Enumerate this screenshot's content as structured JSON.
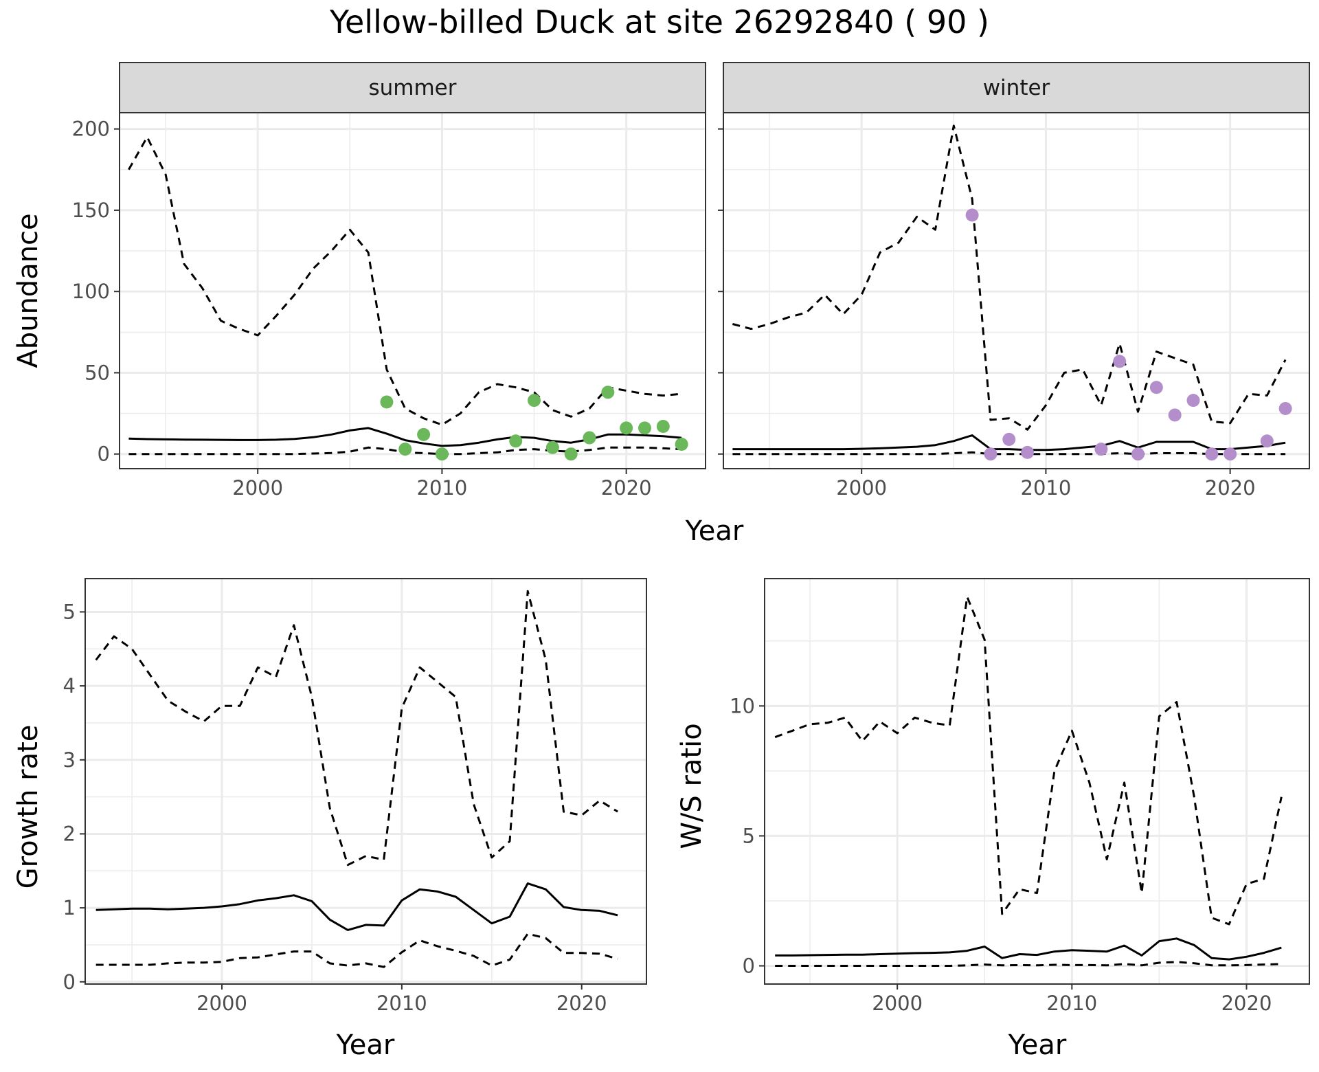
{
  "title": "Yellow-billed Duck at site 26292840 ( 90 )",
  "chart_data": [
    {
      "type": "line",
      "panel": "summer",
      "facet_label": "summer",
      "xlabel": "Year",
      "ylabel": "Abundance",
      "xlim": [
        1992.5,
        2024.3
      ],
      "ylim": [
        -9,
        210
      ],
      "xticks": [
        2000,
        2010,
        2020
      ],
      "yticks": [
        0,
        50,
        100,
        150,
        200
      ],
      "grid": true,
      "x": [
        1993,
        1994,
        1995,
        1996,
        1997,
        1998,
        1999,
        2000,
        2001,
        2002,
        2003,
        2004,
        2005,
        2006,
        2007,
        2008,
        2009,
        2010,
        2011,
        2012,
        2013,
        2014,
        2015,
        2016,
        2017,
        2018,
        2019,
        2020,
        2021,
        2022,
        2023
      ],
      "series": [
        {
          "style": "solid",
          "values": [
            9.5,
            9.2,
            9,
            8.9,
            8.8,
            8.7,
            8.6,
            8.6,
            8.8,
            9.3,
            10.3,
            12,
            14.5,
            16,
            12.5,
            8.5,
            6.5,
            5,
            5.5,
            7,
            9,
            10.5,
            10,
            8,
            7,
            9,
            12,
            12,
            11.5,
            11,
            10
          ]
        },
        {
          "style": "dashed",
          "values": [
            175,
            195,
            172,
            117,
            102,
            82,
            77,
            73,
            85,
            98,
            114,
            125,
            138,
            124,
            52,
            28,
            22,
            18,
            25,
            38,
            43,
            41,
            38,
            27,
            23,
            28,
            41,
            39,
            37,
            36,
            37
          ]
        },
        {
          "style": "dashed",
          "values": [
            0,
            0,
            0,
            0,
            0,
            0,
            0,
            0,
            0,
            0,
            0.3,
            0.6,
            1.5,
            4,
            3,
            1,
            0.5,
            0,
            0,
            0.5,
            1,
            2.5,
            3,
            2,
            1.5,
            2.5,
            4,
            4,
            4,
            3.5,
            3
          ]
        }
      ],
      "points": {
        "color": "#6ab85a",
        "x": [
          2007,
          2008,
          2009,
          2010,
          2014,
          2015,
          2016,
          2017,
          2018,
          2019,
          2020,
          2021,
          2022,
          2023
        ],
        "y": [
          32,
          3,
          12,
          0,
          8,
          33,
          4,
          0,
          10,
          38,
          16,
          16,
          17,
          6
        ]
      }
    },
    {
      "type": "line",
      "panel": "winter",
      "facet_label": "winter",
      "xlabel": "Year",
      "ylabel": "",
      "xlim": [
        1992.5,
        2024.3
      ],
      "ylim": [
        -9,
        210
      ],
      "xticks": [
        2000,
        2010,
        2020
      ],
      "yticks": [
        0,
        50,
        100,
        150,
        200
      ],
      "grid": true,
      "x": [
        1993,
        1994,
        1995,
        1996,
        1997,
        1998,
        1999,
        2000,
        2001,
        2002,
        2003,
        2004,
        2005,
        2006,
        2007,
        2008,
        2009,
        2010,
        2011,
        2012,
        2013,
        2014,
        2015,
        2016,
        2017,
        2018,
        2019,
        2020,
        2021,
        2022,
        2023
      ],
      "series": [
        {
          "style": "solid",
          "values": [
            3,
            3,
            3,
            3,
            3,
            3,
            3,
            3.2,
            3.5,
            4,
            4.5,
            5.5,
            8,
            11.5,
            3,
            3,
            2.5,
            2.5,
            3,
            4,
            5,
            8,
            4,
            7.5,
            7.5,
            7.5,
            3,
            3,
            4,
            5,
            7
          ]
        },
        {
          "style": "dashed",
          "values": [
            80,
            77,
            80,
            84,
            87,
            98,
            86,
            98,
            124,
            130,
            146,
            138,
            202,
            157,
            21,
            22,
            15,
            30,
            50,
            52,
            30,
            68,
            26,
            63,
            59,
            55,
            20,
            19,
            37,
            36,
            58
          ]
        },
        {
          "style": "dashed",
          "values": [
            0,
            0,
            0,
            0,
            0,
            0,
            0,
            0,
            0,
            0,
            0,
            0,
            0.5,
            1,
            0,
            0,
            0,
            0,
            0,
            0,
            0,
            0.5,
            0,
            0.5,
            0.5,
            0.5,
            0,
            0,
            0,
            0,
            0
          ]
        }
      ],
      "points": {
        "color": "#b38ecb",
        "x": [
          2006,
          2007,
          2008,
          2009,
          2013,
          2014,
          2015,
          2016,
          2017,
          2018,
          2019,
          2020,
          2022,
          2023
        ],
        "y": [
          147,
          0,
          9,
          1,
          3,
          57,
          0,
          41,
          24,
          33,
          0,
          0,
          8,
          28
        ]
      }
    },
    {
      "type": "line",
      "panel": "growth",
      "xlabel": "Year",
      "ylabel": "Growth rate",
      "xlim": [
        1992.4,
        2023.6
      ],
      "ylim": [
        -0.03,
        5.45
      ],
      "xticks": [
        2000,
        2010,
        2020
      ],
      "yticks": [
        0,
        1,
        2,
        3,
        4,
        5
      ],
      "grid": true,
      "x": [
        1993,
        1994,
        1995,
        1996,
        1997,
        1998,
        1999,
        2000,
        2001,
        2002,
        2003,
        2004,
        2005,
        2006,
        2007,
        2008,
        2009,
        2010,
        2011,
        2012,
        2013,
        2014,
        2015,
        2016,
        2017,
        2018,
        2019,
        2020,
        2021,
        2022
      ],
      "series": [
        {
          "style": "solid",
          "values": [
            0.97,
            0.98,
            0.99,
            0.99,
            0.98,
            0.99,
            1,
            1.02,
            1.05,
            1.1,
            1.13,
            1.17,
            1.09,
            0.84,
            0.7,
            0.77,
            0.76,
            1.1,
            1.25,
            1.22,
            1.15,
            0.97,
            0.79,
            0.88,
            1.33,
            1.25,
            1.01,
            0.97,
            0.96,
            0.9
          ]
        },
        {
          "style": "dashed",
          "values": [
            4.35,
            4.67,
            4.5,
            4.15,
            3.8,
            3.65,
            3.52,
            3.73,
            3.73,
            4.25,
            4.12,
            4.82,
            3.85,
            2.35,
            1.58,
            1.7,
            1.65,
            3.7,
            4.25,
            4.05,
            3.85,
            2.4,
            1.68,
            1.9,
            5.28,
            4.35,
            2.3,
            2.25,
            2.45,
            2.3
          ]
        },
        {
          "style": "dashed",
          "values": [
            0.23,
            0.23,
            0.23,
            0.23,
            0.25,
            0.26,
            0.26,
            0.27,
            0.32,
            0.33,
            0.37,
            0.41,
            0.41,
            0.25,
            0.22,
            0.25,
            0.2,
            0.4,
            0.56,
            0.48,
            0.42,
            0.35,
            0.22,
            0.3,
            0.65,
            0.59,
            0.39,
            0.39,
            0.38,
            0.31
          ]
        }
      ]
    },
    {
      "type": "line",
      "panel": "ws_ratio",
      "xlabel": "Year",
      "ylabel": "W/S ratio",
      "xlim": [
        1992.4,
        2023.6
      ],
      "ylim": [
        -0.7,
        14.9
      ],
      "xticks": [
        2000,
        2010,
        2020
      ],
      "yticks": [
        0,
        5,
        10
      ],
      "grid": true,
      "x": [
        1993,
        1994,
        1995,
        1996,
        1997,
        1998,
        1999,
        2000,
        2001,
        2002,
        2003,
        2004,
        2005,
        2006,
        2007,
        2008,
        2009,
        2010,
        2011,
        2012,
        2013,
        2014,
        2015,
        2016,
        2017,
        2018,
        2019,
        2020,
        2021,
        2022
      ],
      "series": [
        {
          "style": "solid",
          "values": [
            0.4,
            0.4,
            0.41,
            0.42,
            0.43,
            0.43,
            0.45,
            0.47,
            0.49,
            0.5,
            0.52,
            0.58,
            0.74,
            0.3,
            0.45,
            0.42,
            0.55,
            0.6,
            0.58,
            0.55,
            0.78,
            0.4,
            0.95,
            1.05,
            0.8,
            0.3,
            0.25,
            0.35,
            0.5,
            0.7
          ]
        },
        {
          "style": "dashed",
          "values": [
            8.8,
            9.05,
            9.3,
            9.35,
            9.55,
            8.65,
            9.4,
            8.95,
            9.55,
            9.35,
            9.25,
            14.2,
            12.55,
            2,
            2.95,
            2.8,
            7.5,
            9.05,
            7.05,
            4.1,
            7.05,
            2.8,
            9.6,
            10.15,
            6.5,
            1.85,
            1.6,
            3.15,
            3.35,
            6.5
          ]
        },
        {
          "style": "dashed",
          "values": [
            0,
            0,
            0,
            0,
            0,
            0,
            0,
            0,
            0,
            0,
            0,
            0.02,
            0.05,
            0.02,
            0.03,
            0.02,
            0.04,
            0.03,
            0.03,
            0.02,
            0.07,
            0.02,
            0.12,
            0.15,
            0.1,
            0.02,
            0.02,
            0.03,
            0.05,
            0.07
          ]
        }
      ]
    }
  ]
}
